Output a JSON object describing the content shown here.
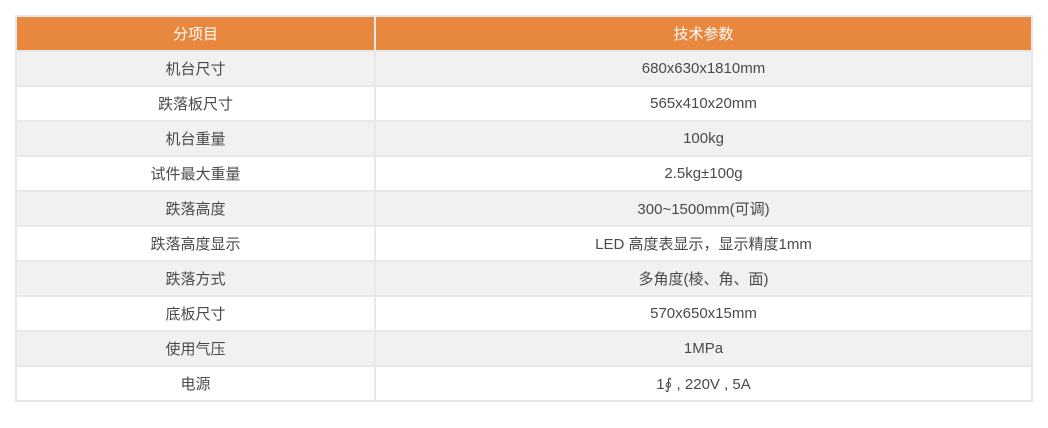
{
  "table": {
    "columns": [
      {
        "label": "分项目"
      },
      {
        "label": "技术参数"
      }
    ],
    "rows": [
      {
        "item": "机台尺寸",
        "value": "680x630x1810mm"
      },
      {
        "item": "跌落板尺寸",
        "value": "565x410x20mm"
      },
      {
        "item": "机台重量",
        "value": "100kg"
      },
      {
        "item": "试件最大重量",
        "value": "2.5kg±100g"
      },
      {
        "item": "跌落高度",
        "value": "300~1500mm(可调)"
      },
      {
        "item": "跌落高度显示",
        "value": "LED 高度表显示，显示精度1mm"
      },
      {
        "item": "跌落方式",
        "value": "多角度(棱、角、面)"
      },
      {
        "item": "底板尺寸",
        "value": "570x650x15mm"
      },
      {
        "item": "使用气压",
        "value": "1MPa"
      },
      {
        "item": "电源",
        "value": "1∮ , 220V , 5A"
      }
    ]
  },
  "colors": {
    "header_bg": "#E8873E",
    "header_text": "#FFFFFF",
    "row_bg": "#FFFFFF",
    "row_alt_bg": "#F1F1F1",
    "border": "#E8E8E8",
    "cell_text": "#4A4A4A"
  }
}
